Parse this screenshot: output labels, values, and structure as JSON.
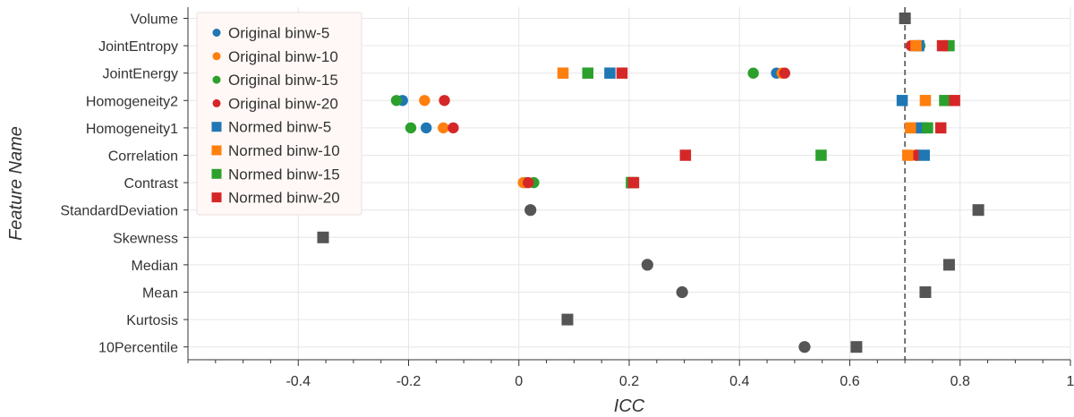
{
  "chart_data": {
    "type": "scatter",
    "title": "",
    "xlabel": "ICC",
    "ylabel": "Feature Name",
    "xlim": [
      -0.6,
      1.0
    ],
    "x_ticks": [
      -0.4,
      -0.2,
      0,
      0.2,
      0.4,
      0.6,
      0.8,
      1
    ],
    "x_tick_labels": [
      "-0.4",
      "-0.2",
      "0",
      "0.2",
      "0.4",
      "0.6",
      "0.8",
      "1"
    ],
    "grid": true,
    "legend_position": "top-left",
    "reference_line": {
      "x": 0.7,
      "style": "dashed",
      "color": "#707070"
    },
    "categories": [
      "Volume",
      "JointEntropy",
      "JointEnergy",
      "Homogeneity2",
      "Homogeneity1",
      "Correlation",
      "Contrast",
      "StandardDeviation",
      "Skewness",
      "Median",
      "Mean",
      "Kurtosis",
      "10Percentile"
    ],
    "series": [
      {
        "name": "Original binw-5",
        "marker": "circle",
        "color": "#1f77b4",
        "points": [
          {
            "feature": "JointEntropy",
            "x": 0.727
          },
          {
            "feature": "JointEnergy",
            "x": 0.467
          },
          {
            "feature": "Homogeneity2",
            "x": -0.211
          },
          {
            "feature": "Homogeneity1",
            "x": -0.168
          },
          {
            "feature": "Correlation",
            "x": 0.722
          },
          {
            "feature": "Contrast",
            "x": 0.012
          }
        ]
      },
      {
        "name": "Original binw-10",
        "marker": "circle",
        "color": "#ff7f0e",
        "points": [
          {
            "feature": "JointEntropy",
            "x": 0.722
          },
          {
            "feature": "JointEnergy",
            "x": 0.477
          },
          {
            "feature": "Homogeneity2",
            "x": -0.171
          },
          {
            "feature": "Homogeneity1",
            "x": -0.137
          },
          {
            "feature": "Correlation",
            "x": 0.722
          },
          {
            "feature": "Contrast",
            "x": 0.008
          }
        ]
      },
      {
        "name": "Original binw-15",
        "marker": "circle",
        "color": "#2ca02c",
        "points": [
          {
            "feature": "JointEntropy",
            "x": 0.727
          },
          {
            "feature": "JointEnergy",
            "x": 0.425
          },
          {
            "feature": "Homogeneity2",
            "x": -0.222
          },
          {
            "feature": "Homogeneity1",
            "x": -0.196
          },
          {
            "feature": "Correlation",
            "x": 0.724
          },
          {
            "feature": "Contrast",
            "x": 0.027
          }
        ]
      },
      {
        "name": "Original binw-20",
        "marker": "circle",
        "color": "#d62728",
        "points": [
          {
            "feature": "JointEntropy",
            "x": 0.711
          },
          {
            "feature": "JointEnergy",
            "x": 0.482
          },
          {
            "feature": "Homogeneity2",
            "x": -0.135
          },
          {
            "feature": "Homogeneity1",
            "x": -0.119
          },
          {
            "feature": "Correlation",
            "x": 0.72
          },
          {
            "feature": "Contrast",
            "x": 0.017
          }
        ]
      },
      {
        "name": "Normed binw-5",
        "marker": "square",
        "color": "#1f77b4",
        "points": [
          {
            "feature": "JointEntropy",
            "x": 0.725
          },
          {
            "feature": "JointEnergy",
            "x": 0.165
          },
          {
            "feature": "Homogeneity2",
            "x": 0.695
          },
          {
            "feature": "Homogeneity1",
            "x": 0.73
          },
          {
            "feature": "Correlation",
            "x": 0.735
          },
          {
            "feature": "Contrast",
            "x": 0.205
          }
        ]
      },
      {
        "name": "Normed binw-10",
        "marker": "square",
        "color": "#ff7f0e",
        "points": [
          {
            "feature": "JointEntropy",
            "x": 0.72
          },
          {
            "feature": "JointEnergy",
            "x": 0.08
          },
          {
            "feature": "Homogeneity2",
            "x": 0.737
          },
          {
            "feature": "Homogeneity1",
            "x": 0.71
          },
          {
            "feature": "Correlation",
            "x": 0.705
          },
          {
            "feature": "Contrast",
            "x": 0.207
          }
        ]
      },
      {
        "name": "Normed binw-15",
        "marker": "square",
        "color": "#2ca02c",
        "points": [
          {
            "feature": "JointEntropy",
            "x": 0.78
          },
          {
            "feature": "JointEnergy",
            "x": 0.125
          },
          {
            "feature": "Homogeneity2",
            "x": 0.772
          },
          {
            "feature": "Homogeneity1",
            "x": 0.741
          },
          {
            "feature": "Correlation",
            "x": 0.548
          },
          {
            "feature": "Contrast",
            "x": 0.204
          }
        ]
      },
      {
        "name": "Normed binw-20",
        "marker": "square",
        "color": "#d62728",
        "points": [
          {
            "feature": "JointEntropy",
            "x": 0.768
          },
          {
            "feature": "JointEnergy",
            "x": 0.187
          },
          {
            "feature": "Homogeneity2",
            "x": 0.79
          },
          {
            "feature": "Homogeneity1",
            "x": 0.765
          },
          {
            "feature": "Correlation",
            "x": 0.302
          },
          {
            "feature": "Contrast",
            "x": 0.208
          }
        ]
      },
      {
        "name": "Original",
        "marker": "circle",
        "color": "#555555",
        "in_legend": false,
        "points": [
          {
            "feature": "StandardDeviation",
            "x": 0.021
          },
          {
            "feature": "Median",
            "x": 0.233
          },
          {
            "feature": "Mean",
            "x": 0.296
          },
          {
            "feature": "10Percentile",
            "x": 0.518
          }
        ]
      },
      {
        "name": "Normed",
        "marker": "square",
        "color": "#555555",
        "in_legend": false,
        "points": [
          {
            "feature": "Volume",
            "x": 0.7
          },
          {
            "feature": "StandardDeviation",
            "x": 0.833
          },
          {
            "feature": "Skewness",
            "x": -0.355
          },
          {
            "feature": "Median",
            "x": 0.78
          },
          {
            "feature": "Mean",
            "x": 0.737
          },
          {
            "feature": "Kurtosis",
            "x": 0.088
          },
          {
            "feature": "10Percentile",
            "x": 0.612
          }
        ]
      }
    ]
  }
}
